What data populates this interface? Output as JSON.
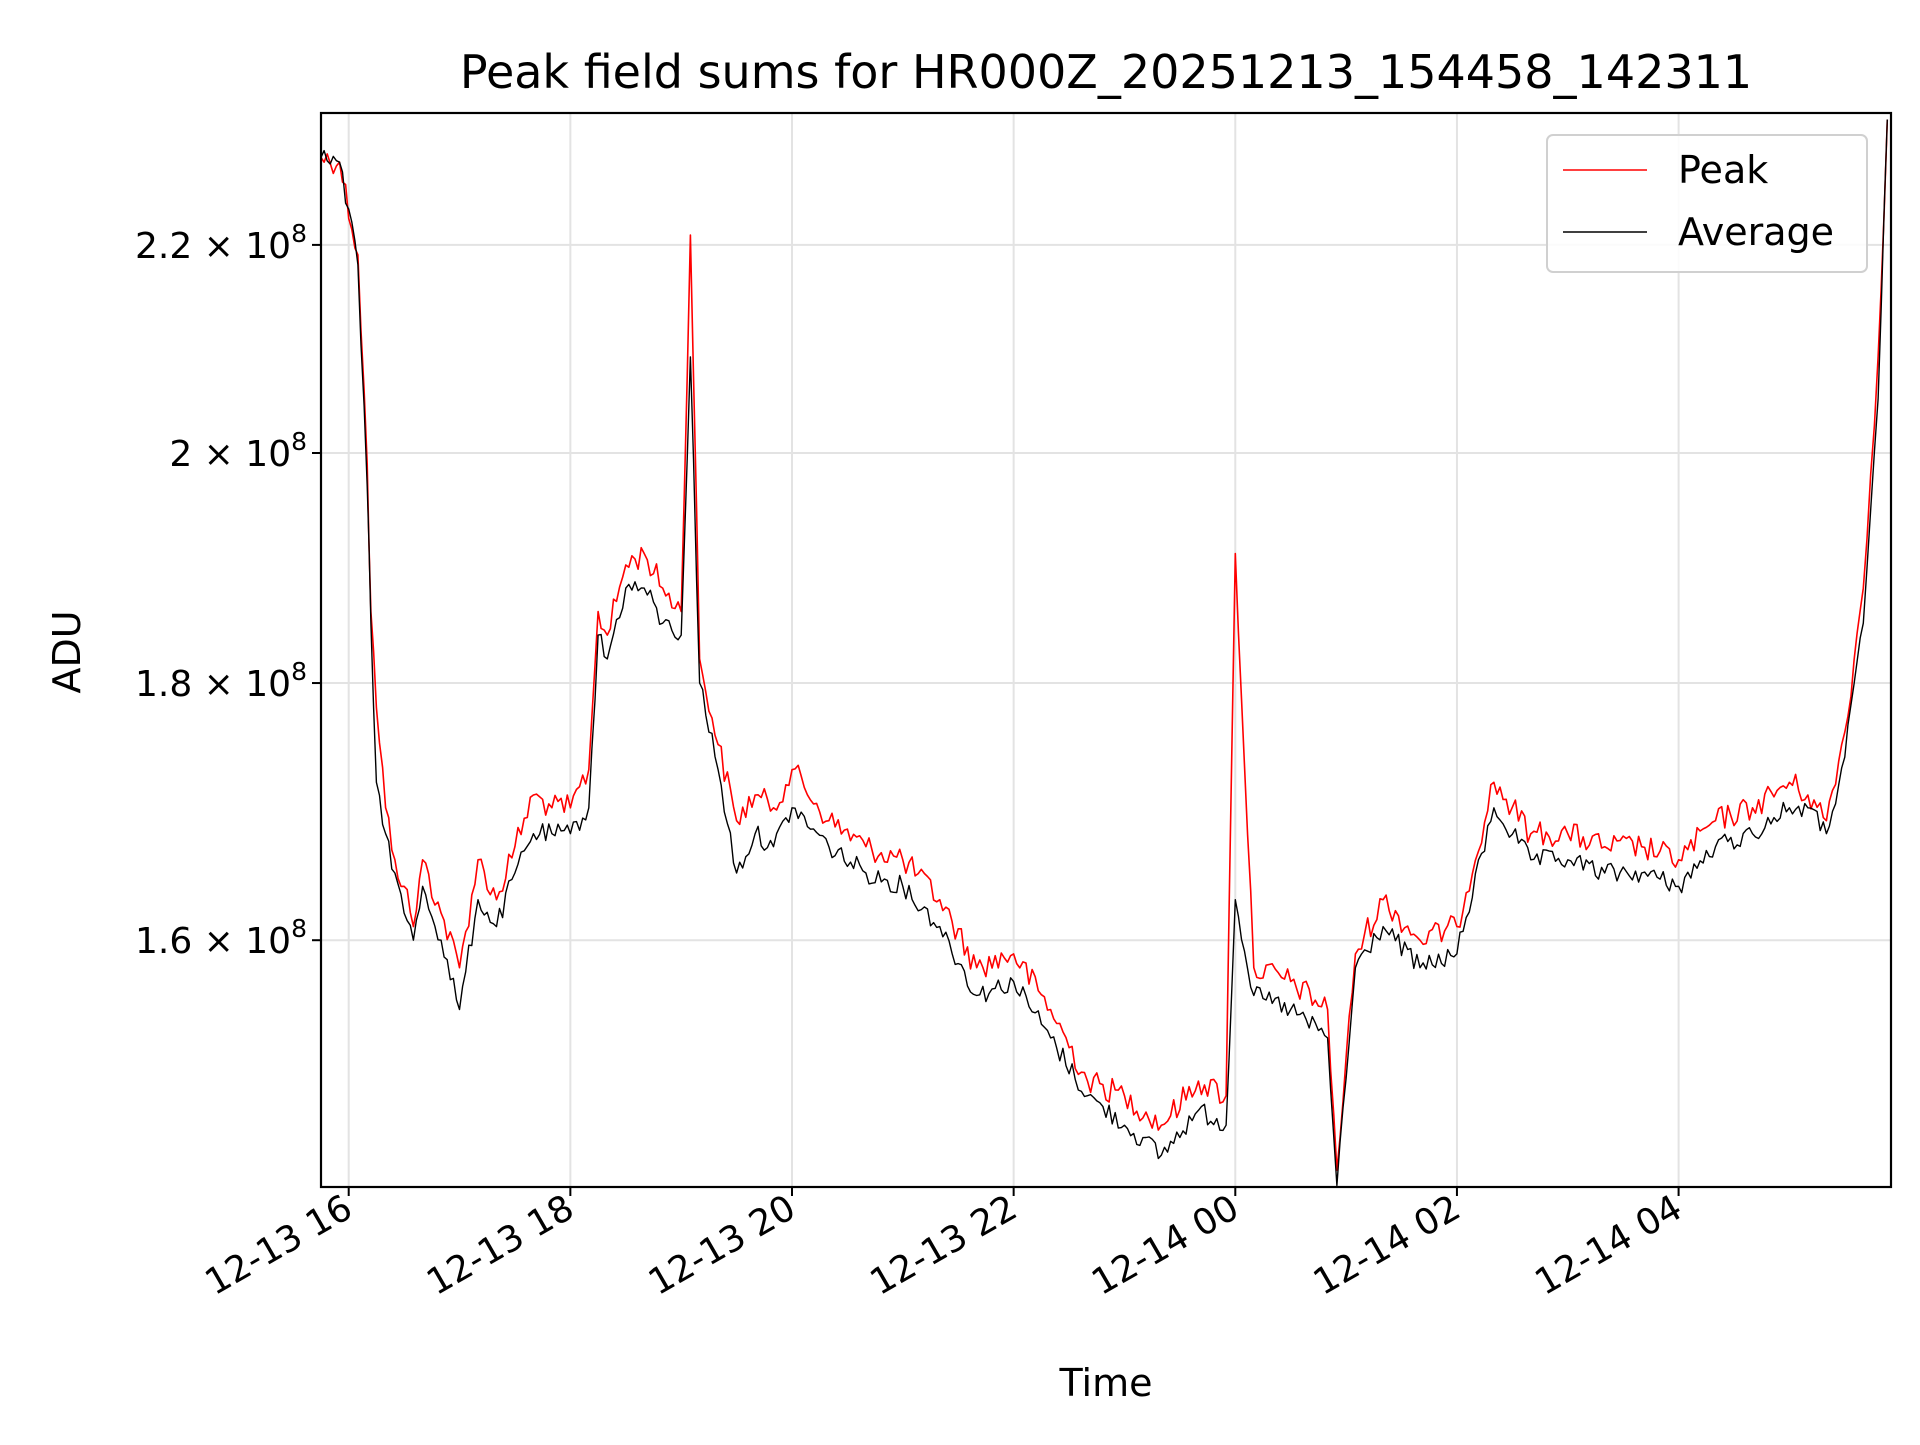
{
  "chart_data": {
    "type": "line",
    "title": "Peak field sums for HR000Z_20251213_154458_142311",
    "xlabel": "Time",
    "ylabel": "ADU",
    "xlim": [
      "2025-12-13 15:45",
      "2025-12-14 05:55"
    ],
    "ylim": [
      142900000.0,
      233700000.0
    ],
    "y_scale": "log",
    "grid": true,
    "legend_position": "top-right",
    "x_tick_values": [
      "2025-12-13 16:00",
      "2025-12-13 18:00",
      "2025-12-13 20:00",
      "2025-12-13 22:00",
      "2025-12-14 00:00",
      "2025-12-14 02:00",
      "2025-12-14 04:00"
    ],
    "x_tick_labels": [
      "12-13 16",
      "12-13 18",
      "12-13 20",
      "12-13 22",
      "12-14 00",
      "12-14 02",
      "12-14 04"
    ],
    "y_ticks": [
      {
        "value": 160000000,
        "label": "1.6 × 10^8"
      },
      {
        "value": 180000000,
        "label": "1.8 × 10^8"
      },
      {
        "value": 200000000,
        "label": "2 × 10^8"
      },
      {
        "value": 220000000,
        "label": "2.2 × 10^8"
      }
    ],
    "series": [
      {
        "name": "Peak",
        "color": "#ff0000",
        "x": [
          "2025-12-13 15:45",
          "2025-12-13 15:55",
          "2025-12-13 16:05",
          "2025-12-13 16:10",
          "2025-12-13 16:12",
          "2025-12-13 16:15",
          "2025-12-13 16:20",
          "2025-12-13 16:25",
          "2025-12-13 16:30",
          "2025-12-13 16:35",
          "2025-12-13 16:40",
          "2025-12-13 16:50",
          "2025-12-13 17:00",
          "2025-12-13 17:10",
          "2025-12-13 17:20",
          "2025-12-13 17:30",
          "2025-12-13 17:40",
          "2025-12-13 17:50",
          "2025-12-13 18:00",
          "2025-12-13 18:10",
          "2025-12-13 18:15",
          "2025-12-13 18:20",
          "2025-12-13 18:30",
          "2025-12-13 18:40",
          "2025-12-13 18:50",
          "2025-12-13 19:00",
          "2025-12-13 19:05",
          "2025-12-13 19:10",
          "2025-12-13 19:20",
          "2025-12-13 19:30",
          "2025-12-13 19:40",
          "2025-12-13 19:50",
          "2025-12-13 20:00",
          "2025-12-13 20:20",
          "2025-12-13 20:40",
          "2025-12-13 21:00",
          "2025-12-13 21:20",
          "2025-12-13 21:40",
          "2025-12-13 22:00",
          "2025-12-13 22:20",
          "2025-12-13 22:40",
          "2025-12-13 23:00",
          "2025-12-13 23:20",
          "2025-12-13 23:40",
          "2025-12-13 23:55",
          "2025-12-14 00:00",
          "2025-12-14 00:10",
          "2025-12-14 00:30",
          "2025-12-14 00:50",
          "2025-12-14 00:55",
          "2025-12-14 01:05",
          "2025-12-14 01:20",
          "2025-12-14 01:40",
          "2025-12-14 02:00",
          "2025-12-14 02:20",
          "2025-12-14 02:40",
          "2025-12-14 03:00",
          "2025-12-14 03:20",
          "2025-12-14 03:40",
          "2025-12-14 04:00",
          "2025-12-14 04:20",
          "2025-12-14 04:40",
          "2025-12-14 05:00",
          "2025-12-14 05:10",
          "2025-12-14 05:20",
          "2025-12-14 05:30",
          "2025-12-14 05:40",
          "2025-12-14 05:48",
          "2025-12-14 05:53"
        ],
        "values": [
          229000000,
          228500000,
          219000000,
          199000000,
          186000000,
          178000000,
          170000000,
          166000000,
          164000000,
          161000000,
          166000000,
          162000000,
          158000000,
          166000000,
          163000000,
          167000000,
          171000000,
          170000000,
          170000000,
          173000000,
          186000000,
          184000000,
          190000000,
          191000000,
          188000000,
          186000000,
          221000000,
          182000000,
          175000000,
          169000000,
          171000000,
          170000000,
          173000000,
          169000000,
          167000000,
          166000000,
          163000000,
          158000000,
          159000000,
          155000000,
          150000000,
          149000000,
          147000000,
          150000000,
          149000000,
          191000000,
          158000000,
          157000000,
          155000000,
          144000000,
          159000000,
          163000000,
          160000000,
          161000000,
          172000000,
          168000000,
          168000000,
          167000000,
          167000000,
          166000000,
          169000000,
          170000000,
          172000000,
          171000000,
          169000000,
          176000000,
          188000000,
          209000000,
          233000000
        ]
      },
      {
        "name": "Average",
        "color": "#000000",
        "x": [
          "2025-12-13 15:45",
          "2025-12-13 15:55",
          "2025-12-13 16:05",
          "2025-12-13 16:10",
          "2025-12-13 16:12",
          "2025-12-13 16:15",
          "2025-12-13 16:20",
          "2025-12-13 16:25",
          "2025-12-13 16:30",
          "2025-12-13 16:35",
          "2025-12-13 16:40",
          "2025-12-13 16:50",
          "2025-12-13 17:00",
          "2025-12-13 17:10",
          "2025-12-13 17:20",
          "2025-12-13 17:30",
          "2025-12-13 17:40",
          "2025-12-13 17:50",
          "2025-12-13 18:00",
          "2025-12-13 18:10",
          "2025-12-13 18:15",
          "2025-12-13 18:20",
          "2025-12-13 18:30",
          "2025-12-13 18:40",
          "2025-12-13 18:50",
          "2025-12-13 19:00",
          "2025-12-13 19:05",
          "2025-12-13 19:10",
          "2025-12-13 19:20",
          "2025-12-13 19:30",
          "2025-12-13 19:40",
          "2025-12-13 19:50",
          "2025-12-13 20:00",
          "2025-12-13 20:20",
          "2025-12-13 20:40",
          "2025-12-13 21:00",
          "2025-12-13 21:20",
          "2025-12-13 21:40",
          "2025-12-13 22:00",
          "2025-12-13 22:20",
          "2025-12-13 22:40",
          "2025-12-13 23:00",
          "2025-12-13 23:20",
          "2025-12-13 23:40",
          "2025-12-13 23:55",
          "2025-12-14 00:00",
          "2025-12-14 00:10",
          "2025-12-14 00:30",
          "2025-12-14 00:50",
          "2025-12-14 00:55",
          "2025-12-14 01:05",
          "2025-12-14 01:20",
          "2025-12-14 01:40",
          "2025-12-14 02:00",
          "2025-12-14 02:20",
          "2025-12-14 02:40",
          "2025-12-14 03:00",
          "2025-12-14 03:20",
          "2025-12-14 03:40",
          "2025-12-14 04:00",
          "2025-12-14 04:20",
          "2025-12-14 04:40",
          "2025-12-14 05:00",
          "2025-12-14 05:10",
          "2025-12-14 05:20",
          "2025-12-14 05:30",
          "2025-12-14 05:40",
          "2025-12-14 05:48",
          "2025-12-14 05:53"
        ],
        "values": [
          229000000,
          228500000,
          218000000,
          197000000,
          185000000,
          172000000,
          168000000,
          165000000,
          162000000,
          160000000,
          164000000,
          160000000,
          155000000,
          163000000,
          161000000,
          165000000,
          168000000,
          168000000,
          168000000,
          170000000,
          184000000,
          182000000,
          188000000,
          188000000,
          185000000,
          184000000,
          209000000,
          180000000,
          173000000,
          165000000,
          168000000,
          167000000,
          170000000,
          167000000,
          165000000,
          164000000,
          161000000,
          156000000,
          157000000,
          153000000,
          149000000,
          147000000,
          145000000,
          148000000,
          147000000,
          163000000,
          156000000,
          155000000,
          153000000,
          143000000,
          158000000,
          161000000,
          158000000,
          159000000,
          170000000,
          166000000,
          166000000,
          165000000,
          165000000,
          164000000,
          167000000,
          168000000,
          170000000,
          170000000,
          168000000,
          174000000,
          185000000,
          205000000,
          233000000
        ]
      }
    ]
  }
}
